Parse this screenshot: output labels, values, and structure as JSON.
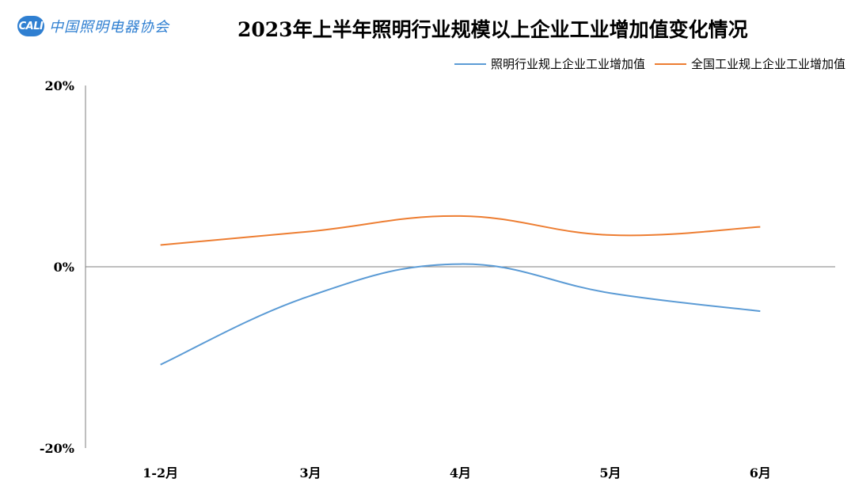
{
  "header": {
    "logo_mark": "CALI",
    "logo_text": "中国照明电器协会",
    "title": "2023年上半年照明行业规模以上企业工业增加值变化情况"
  },
  "colors": {
    "series_lighting": "#5b9bd5",
    "series_national": "#ed7d31",
    "axis": "#7f7f7f"
  },
  "chart_data": {
    "type": "line",
    "title": "2023年上半年照明行业规模以上企业工业增加值变化情况",
    "categories": [
      "1-2月",
      "3月",
      "4月",
      "5月",
      "6月"
    ],
    "series": [
      {
        "name": "照明行业规上企业工业增加值",
        "values": [
          -10.8,
          -3.2,
          0.3,
          -2.9,
          -4.9
        ]
      },
      {
        "name": "全国工业规上企业工业增加值",
        "values": [
          2.4,
          3.9,
          5.6,
          3.5,
          4.4
        ]
      }
    ],
    "ylim": [
      -20,
      20
    ],
    "yticks": [
      {
        "value": 20,
        "label": "20%"
      },
      {
        "value": 0,
        "label": "0%"
      },
      {
        "value": -20,
        "label": "-20%"
      }
    ],
    "legend_position": "top-right",
    "grid": false,
    "smooth": true
  }
}
